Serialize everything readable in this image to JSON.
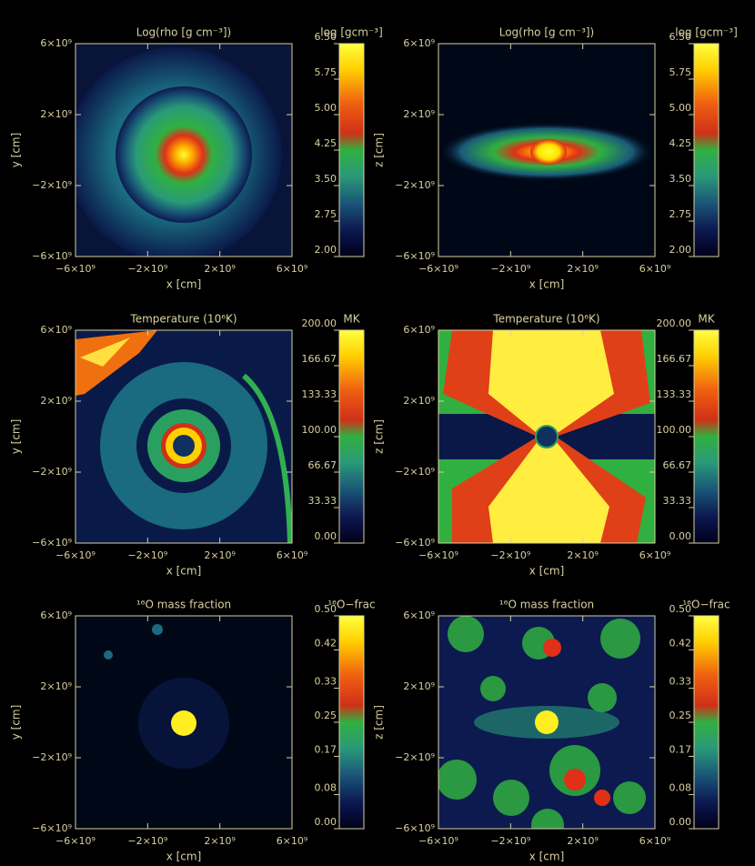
{
  "chart_data": [
    {
      "type": "image",
      "title": "Log(rho [g cm⁻³])",
      "xlabel": "x [cm]",
      "ylabel": "y [cm]",
      "xlim": [
        -6000000000,
        6000000000
      ],
      "ylim": [
        -6000000000,
        6000000000
      ],
      "xticks": [
        {
          "value": -6000000000,
          "label": "−6×10⁹"
        },
        {
          "value": -2000000000,
          "label": "−2×10⁹"
        },
        {
          "value": 2000000000,
          "label": "2×10⁹"
        },
        {
          "value": 6000000000,
          "label": "6×10⁹"
        }
      ],
      "yticks": [
        {
          "value": -6000000000,
          "label": "−6×10⁹"
        },
        {
          "value": -2000000000,
          "label": "−2×10⁹"
        },
        {
          "value": 2000000000,
          "label": "2×10⁹"
        },
        {
          "value": 6000000000,
          "label": "6×10⁹"
        }
      ],
      "colorbar": {
        "label": "log [gcm⁻³]",
        "lim": [
          2,
          6.5
        ],
        "ticks": [
          {
            "value": 2,
            "label": "2.00"
          },
          {
            "value": 2.75,
            "label": "2.75"
          },
          {
            "value": 3.5,
            "label": "3.50"
          },
          {
            "value": 4.25,
            "label": "4.25"
          },
          {
            "value": 5,
            "label": "5.00"
          },
          {
            "value": 5.75,
            "label": "5.75"
          },
          {
            "value": 6.5,
            "label": "6.50"
          }
        ]
      }
    },
    {
      "type": "image",
      "title": "Log(rho [g cm⁻³])",
      "xlabel": "x [cm]",
      "ylabel": "z [cm]",
      "xlim": [
        -6000000000,
        6000000000
      ],
      "ylim": [
        -6000000000,
        6000000000
      ],
      "xticks": [
        {
          "value": -6000000000,
          "label": "−6×10⁹"
        },
        {
          "value": -2000000000,
          "label": "−2×10⁹"
        },
        {
          "value": 2000000000,
          "label": "2×10⁹"
        },
        {
          "value": 6000000000,
          "label": "6×10⁹"
        }
      ],
      "yticks": [
        {
          "value": -6000000000,
          "label": "−6×10⁹"
        },
        {
          "value": -2000000000,
          "label": "−2×10⁹"
        },
        {
          "value": 2000000000,
          "label": "2×10⁹"
        },
        {
          "value": 6000000000,
          "label": "6×10⁹"
        }
      ],
      "colorbar": {
        "label": "log [gcm⁻³]",
        "lim": [
          2,
          6.5
        ],
        "ticks": [
          {
            "value": 2,
            "label": "2.00"
          },
          {
            "value": 2.75,
            "label": "2.75"
          },
          {
            "value": 3.5,
            "label": "3.50"
          },
          {
            "value": 4.25,
            "label": "4.25"
          },
          {
            "value": 5,
            "label": "5.00"
          },
          {
            "value": 5.75,
            "label": "5.75"
          },
          {
            "value": 6.5,
            "label": "6.50"
          }
        ]
      }
    },
    {
      "type": "image",
      "title": "Temperature (10⁶K)",
      "xlabel": "x [cm]",
      "ylabel": "y [cm]",
      "xlim": [
        -6000000000,
        6000000000
      ],
      "ylim": [
        -6000000000,
        6000000000
      ],
      "xticks": [
        {
          "value": -6000000000,
          "label": "−6×10⁹"
        },
        {
          "value": -2000000000,
          "label": "−2×10⁹"
        },
        {
          "value": 2000000000,
          "label": "2×10⁹"
        },
        {
          "value": 6000000000,
          "label": "6×10⁹"
        }
      ],
      "yticks": [
        {
          "value": -6000000000,
          "label": "−6×10⁹"
        },
        {
          "value": -2000000000,
          "label": "−2×10⁹"
        },
        {
          "value": 2000000000,
          "label": "2×10⁹"
        },
        {
          "value": 6000000000,
          "label": "6×10⁹"
        }
      ],
      "colorbar": {
        "label": "MK",
        "lim": [
          0,
          200
        ],
        "ticks": [
          {
            "value": 0,
            "label": "0.00"
          },
          {
            "value": 33.33,
            "label": "33.33"
          },
          {
            "value": 66.67,
            "label": "66.67"
          },
          {
            "value": 100,
            "label": "100.00"
          },
          {
            "value": 133.33,
            "label": "133.33"
          },
          {
            "value": 166.67,
            "label": "166.67"
          },
          {
            "value": 200,
            "label": "200.00"
          }
        ]
      }
    },
    {
      "type": "image",
      "title": "Temperature (10⁶K)",
      "xlabel": "x [cm]",
      "ylabel": "z [cm]",
      "xlim": [
        -6000000000,
        6000000000
      ],
      "ylim": [
        -6000000000,
        6000000000
      ],
      "xticks": [
        {
          "value": -6000000000,
          "label": "−6×10⁹"
        },
        {
          "value": -2000000000,
          "label": "−2×10⁹"
        },
        {
          "value": 2000000000,
          "label": "2×10⁹"
        },
        {
          "value": 6000000000,
          "label": "6×10⁹"
        }
      ],
      "yticks": [
        {
          "value": -6000000000,
          "label": "−6×10⁹"
        },
        {
          "value": -2000000000,
          "label": "−2×10⁹"
        },
        {
          "value": 2000000000,
          "label": "2×10⁹"
        },
        {
          "value": 6000000000,
          "label": "6×10⁹"
        }
      ],
      "colorbar": {
        "label": "MK",
        "lim": [
          0,
          200
        ],
        "ticks": [
          {
            "value": 0,
            "label": "0.00"
          },
          {
            "value": 33.33,
            "label": "33.33"
          },
          {
            "value": 66.67,
            "label": "66.67"
          },
          {
            "value": 100,
            "label": "100.00"
          },
          {
            "value": 133.33,
            "label": "133.33"
          },
          {
            "value": 166.67,
            "label": "166.67"
          },
          {
            "value": 200,
            "label": "200.00"
          }
        ]
      }
    },
    {
      "type": "image",
      "title": "¹⁶O mass fraction",
      "xlabel": "x [cm]",
      "ylabel": "y [cm]",
      "xlim": [
        -6000000000,
        6000000000
      ],
      "ylim": [
        -6000000000,
        6000000000
      ],
      "xticks": [
        {
          "value": -6000000000,
          "label": "−6×10⁹"
        },
        {
          "value": -2000000000,
          "label": "−2×10⁹"
        },
        {
          "value": 2000000000,
          "label": "2×10⁹"
        },
        {
          "value": 6000000000,
          "label": "6×10⁹"
        }
      ],
      "yticks": [
        {
          "value": -6000000000,
          "label": "−6×10⁹"
        },
        {
          "value": -2000000000,
          "label": "−2×10⁹"
        },
        {
          "value": 2000000000,
          "label": "2×10⁹"
        },
        {
          "value": 6000000000,
          "label": "6×10⁹"
        }
      ],
      "colorbar": {
        "label": "¹⁶O−frac",
        "lim": [
          0,
          0.5
        ],
        "ticks": [
          {
            "value": 0,
            "label": "0.00"
          },
          {
            "value": 0.08,
            "label": "0.08"
          },
          {
            "value": 0.17,
            "label": "0.17"
          },
          {
            "value": 0.25,
            "label": "0.25"
          },
          {
            "value": 0.33,
            "label": "0.33"
          },
          {
            "value": 0.42,
            "label": "0.42"
          },
          {
            "value": 0.5,
            "label": "0.50"
          }
        ]
      }
    },
    {
      "type": "image",
      "title": "¹⁶O mass fraction",
      "xlabel": "x [cm]",
      "ylabel": "z [cm]",
      "xlim": [
        -6000000000,
        6000000000
      ],
      "ylim": [
        -6000000000,
        6000000000
      ],
      "xticks": [
        {
          "value": -6000000000,
          "label": "−6×10⁹"
        },
        {
          "value": -2000000000,
          "label": "−2×10⁹"
        },
        {
          "value": 2000000000,
          "label": "2×10⁹"
        },
        {
          "value": 6000000000,
          "label": "6×10⁹"
        }
      ],
      "yticks": [
        {
          "value": -6000000000,
          "label": "−6×10⁹"
        },
        {
          "value": -2000000000,
          "label": "−2×10⁹"
        },
        {
          "value": 2000000000,
          "label": "2×10⁹"
        },
        {
          "value": 6000000000,
          "label": "6×10⁹"
        }
      ],
      "colorbar": {
        "label": "¹⁶O−frac",
        "lim": [
          0,
          0.5
        ],
        "ticks": [
          {
            "value": 0,
            "label": "0.00"
          },
          {
            "value": 0.08,
            "label": "0.08"
          },
          {
            "value": 0.17,
            "label": "0.17"
          },
          {
            "value": 0.25,
            "label": "0.25"
          },
          {
            "value": 0.33,
            "label": "0.33"
          },
          {
            "value": 0.42,
            "label": "0.42"
          },
          {
            "value": 0.5,
            "label": "0.50"
          }
        ]
      }
    }
  ]
}
